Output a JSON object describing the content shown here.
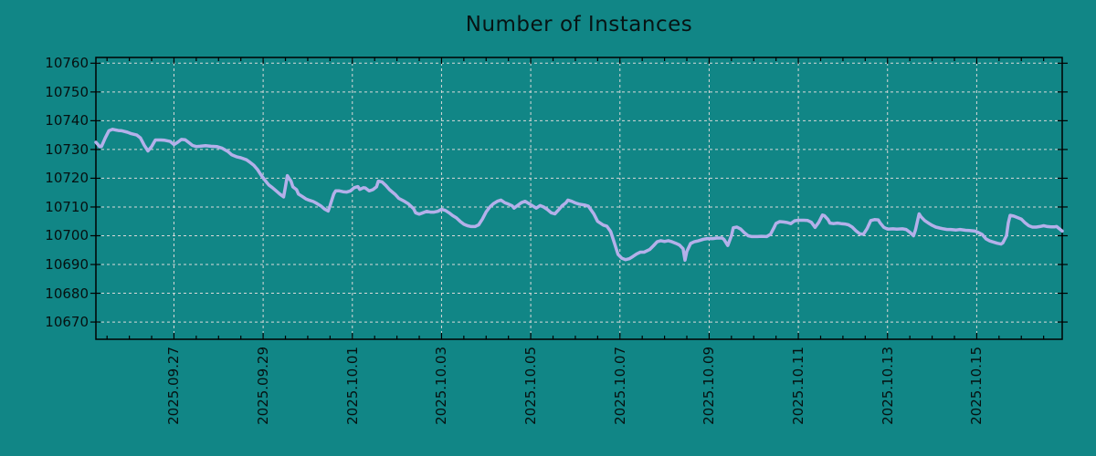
{
  "chart_data": {
    "type": "line",
    "title": "Number of Instances",
    "background_color": "#118686",
    "line_color": "#b4b0ea",
    "grid_color": "#d9d9d9",
    "axis_color": "#000000",
    "text_color": "#061010",
    "grid": true,
    "legend": "none",
    "ylim": [
      10664,
      10762
    ],
    "y_ticks": [
      10670,
      10680,
      10690,
      10700,
      10710,
      10720,
      10730,
      10740,
      10750,
      10760
    ],
    "xlim_hours": [
      0,
      520
    ],
    "x_ticks": [
      {
        "label": "2025.09.27",
        "t": 42
      },
      {
        "label": "2025.09.29",
        "t": 90
      },
      {
        "label": "2025.10.01",
        "t": 138
      },
      {
        "label": "2025.10.03",
        "t": 186
      },
      {
        "label": "2025.10.05",
        "t": 234
      },
      {
        "label": "2025.10.07",
        "t": 282
      },
      {
        "label": "2025.10.09",
        "t": 330
      },
      {
        "label": "2025.10.11",
        "t": 378
      },
      {
        "label": "2025.10.13",
        "t": 426
      },
      {
        "label": "2025.10.15",
        "t": 474
      }
    ],
    "x_minor_tick_start_hour": 6,
    "x_minor_tick_every_hours": 12,
    "series": [
      {
        "name": "Number of Instances",
        "points": [
          [
            0,
            10732.5
          ],
          [
            2,
            10731
          ],
          [
            3,
            10731
          ],
          [
            5,
            10734
          ],
          [
            7,
            10736.5
          ],
          [
            9,
            10737
          ],
          [
            12,
            10736.6
          ],
          [
            14,
            10736.5
          ],
          [
            17,
            10736
          ],
          [
            19,
            10735.5
          ],
          [
            22,
            10735
          ],
          [
            24,
            10734
          ],
          [
            26,
            10731.5
          ],
          [
            28,
            10729.5
          ],
          [
            30,
            10731
          ],
          [
            32,
            10733.3
          ],
          [
            35,
            10733.3
          ],
          [
            37,
            10733.2
          ],
          [
            40,
            10732.8
          ],
          [
            42,
            10731.7
          ],
          [
            44,
            10732.5
          ],
          [
            46,
            10733.5
          ],
          [
            48,
            10733.4
          ],
          [
            50,
            10732.4
          ],
          [
            52,
            10731.4
          ],
          [
            54,
            10731
          ],
          [
            56,
            10731.1
          ],
          [
            59,
            10731.3
          ],
          [
            62,
            10731.1
          ],
          [
            65,
            10731
          ],
          [
            68,
            10730.4
          ],
          [
            71,
            10729.3
          ],
          [
            73,
            10728.2
          ],
          [
            76,
            10727.4
          ],
          [
            78,
            10727.1
          ],
          [
            81,
            10726.4
          ],
          [
            83,
            10725.5
          ],
          [
            85,
            10724.5
          ],
          [
            87,
            10723
          ],
          [
            89,
            10721
          ],
          [
            91,
            10719.3
          ],
          [
            93,
            10717.7
          ],
          [
            95,
            10716.7
          ],
          [
            97,
            10715.6
          ],
          [
            99,
            10714.5
          ],
          [
            101,
            10713.5
          ],
          [
            102,
            10717
          ],
          [
            103,
            10720.9
          ],
          [
            105,
            10719
          ],
          [
            106,
            10717
          ],
          [
            108,
            10716
          ],
          [
            109,
            10714.5
          ],
          [
            111,
            10713.7
          ],
          [
            113,
            10712.8
          ],
          [
            115,
            10712.3
          ],
          [
            117,
            10711.9
          ],
          [
            119,
            10711.2
          ],
          [
            121,
            10710.4
          ],
          [
            123,
            10709.3
          ],
          [
            125,
            10708.6
          ],
          [
            126,
            10710.5
          ],
          [
            128,
            10714.5
          ],
          [
            129,
            10715.6
          ],
          [
            131,
            10715.6
          ],
          [
            133,
            10715.3
          ],
          [
            135,
            10715.2
          ],
          [
            137,
            10715.6
          ],
          [
            139,
            10716.7
          ],
          [
            141,
            10717.1
          ],
          [
            142,
            10716.1
          ],
          [
            144,
            10716.7
          ],
          [
            145,
            10716.6
          ],
          [
            147,
            10715.6
          ],
          [
            149,
            10716
          ],
          [
            151,
            10717
          ],
          [
            152,
            10719
          ],
          [
            154,
            10718.7
          ],
          [
            156,
            10717.5
          ],
          [
            158,
            10716
          ],
          [
            161,
            10714.4
          ],
          [
            163,
            10713
          ],
          [
            166,
            10712
          ],
          [
            168,
            10711.2
          ],
          [
            171,
            10709.4
          ],
          [
            172,
            10708
          ],
          [
            174,
            10707.5
          ],
          [
            176,
            10708
          ],
          [
            178,
            10708.5
          ],
          [
            180,
            10708.2
          ],
          [
            182,
            10708.2
          ],
          [
            184,
            10708.5
          ],
          [
            186,
            10709.2
          ],
          [
            188,
            10708.8
          ],
          [
            190,
            10708
          ],
          [
            192,
            10707
          ],
          [
            194,
            10706.2
          ],
          [
            196,
            10705
          ],
          [
            198,
            10704
          ],
          [
            200,
            10703.5
          ],
          [
            202,
            10703.2
          ],
          [
            204,
            10703.2
          ],
          [
            206,
            10703.8
          ],
          [
            208,
            10705.8
          ],
          [
            210,
            10708.3
          ],
          [
            212,
            10710
          ],
          [
            214,
            10711.2
          ],
          [
            216,
            10712
          ],
          [
            218,
            10712.4
          ],
          [
            220,
            10711.5
          ],
          [
            222,
            10711
          ],
          [
            224,
            10710.4
          ],
          [
            225,
            10709.6
          ],
          [
            227,
            10710.6
          ],
          [
            229,
            10711.5
          ],
          [
            231,
            10712
          ],
          [
            233,
            10711.2
          ],
          [
            235,
            10710.4
          ],
          [
            237,
            10709.6
          ],
          [
            239,
            10710.5
          ],
          [
            241,
            10710
          ],
          [
            243,
            10709.1
          ],
          [
            245,
            10708
          ],
          [
            247,
            10707.6
          ],
          [
            249,
            10709
          ],
          [
            251,
            10710.5
          ],
          [
            253,
            10711.5
          ],
          [
            254,
            10712.4
          ],
          [
            256,
            10712
          ],
          [
            258,
            10711.4
          ],
          [
            260,
            10711
          ],
          [
            263,
            10710.7
          ],
          [
            265,
            10710.3
          ],
          [
            268,
            10707.5
          ],
          [
            270,
            10705
          ],
          [
            273,
            10703.7
          ],
          [
            275,
            10703.3
          ],
          [
            277,
            10701.5
          ],
          [
            279,
            10697.5
          ],
          [
            281,
            10693.5
          ],
          [
            283,
            10692.2
          ],
          [
            285,
            10691.7
          ],
          [
            287,
            10692
          ],
          [
            289,
            10692.8
          ],
          [
            291,
            10693.7
          ],
          [
            293,
            10694.3
          ],
          [
            295,
            10694.3
          ],
          [
            298,
            10695.2
          ],
          [
            300,
            10696.5
          ],
          [
            302,
            10697.9
          ],
          [
            304,
            10698.3
          ],
          [
            306,
            10698
          ],
          [
            308,
            10698.3
          ],
          [
            310,
            10697.9
          ],
          [
            312,
            10697.4
          ],
          [
            314,
            10696.8
          ],
          [
            316,
            10695.5
          ],
          [
            317,
            10691.5
          ],
          [
            318,
            10694.5
          ],
          [
            320,
            10697.3
          ],
          [
            322,
            10697.9
          ],
          [
            324,
            10698.2
          ],
          [
            327,
            10698.8
          ],
          [
            329,
            10699
          ],
          [
            332,
            10699
          ],
          [
            334,
            10699.2
          ],
          [
            337,
            10699.2
          ],
          [
            338,
            10698.7
          ],
          [
            340,
            10696.6
          ],
          [
            342,
            10700
          ],
          [
            343,
            10702.8
          ],
          [
            345,
            10703
          ],
          [
            347,
            10702.3
          ],
          [
            349,
            10701
          ],
          [
            351,
            10700
          ],
          [
            353,
            10699.7
          ],
          [
            356,
            10699.7
          ],
          [
            358,
            10699.8
          ],
          [
            361,
            10699.7
          ],
          [
            363,
            10700.5
          ],
          [
            365,
            10702.9
          ],
          [
            366,
            10704.3
          ],
          [
            368,
            10704.9
          ],
          [
            370,
            10704.8
          ],
          [
            372,
            10704.6
          ],
          [
            374,
            10704.2
          ],
          [
            376,
            10705.2
          ],
          [
            378,
            10705.4
          ],
          [
            381,
            10705.4
          ],
          [
            383,
            10705.3
          ],
          [
            385,
            10704.7
          ],
          [
            387,
            10702.9
          ],
          [
            389,
            10704.7
          ],
          [
            391,
            10707.2
          ],
          [
            392,
            10707
          ],
          [
            394,
            10705.6
          ],
          [
            395,
            10704.4
          ],
          [
            397,
            10704.2
          ],
          [
            399,
            10704.4
          ],
          [
            401,
            10704.2
          ],
          [
            403,
            10704.1
          ],
          [
            405,
            10703.8
          ],
          [
            407,
            10703
          ],
          [
            409,
            10701.7
          ],
          [
            411,
            10700.7
          ],
          [
            413,
            10700.5
          ],
          [
            415,
            10702.5
          ],
          [
            417,
            10705.3
          ],
          [
            419,
            10705.6
          ],
          [
            421,
            10705.5
          ],
          [
            422,
            10704.5
          ],
          [
            424,
            10702.9
          ],
          [
            426,
            10702.3
          ],
          [
            429,
            10702.4
          ],
          [
            431,
            10702.3
          ],
          [
            434,
            10702.4
          ],
          [
            436,
            10702.2
          ],
          [
            438,
            10701.2
          ],
          [
            440,
            10700
          ],
          [
            441,
            10702
          ],
          [
            443,
            10707.6
          ],
          [
            444,
            10706.6
          ],
          [
            446,
            10705.3
          ],
          [
            448,
            10704.4
          ],
          [
            450,
            10703.6
          ],
          [
            452,
            10703
          ],
          [
            454,
            10702.7
          ],
          [
            456,
            10702.4
          ],
          [
            458,
            10702.2
          ],
          [
            460,
            10702.2
          ],
          [
            463,
            10702
          ],
          [
            465,
            10702.2
          ],
          [
            468,
            10701.9
          ],
          [
            470,
            10701.8
          ],
          [
            473,
            10701.6
          ],
          [
            475,
            10701.1
          ],
          [
            477,
            10700.4
          ],
          [
            479,
            10698.9
          ],
          [
            481,
            10698.2
          ],
          [
            483,
            10697.8
          ],
          [
            485,
            10697.4
          ],
          [
            487,
            10697.1
          ],
          [
            488,
            10697.5
          ],
          [
            490,
            10700
          ],
          [
            491,
            10704.5
          ],
          [
            492,
            10707.1
          ],
          [
            494,
            10706.8
          ],
          [
            496,
            10706.3
          ],
          [
            498,
            10705.8
          ],
          [
            500,
            10704.5
          ],
          [
            502,
            10703.5
          ],
          [
            504,
            10703
          ],
          [
            506,
            10703
          ],
          [
            508,
            10703.2
          ],
          [
            510,
            10703.5
          ],
          [
            512,
            10703.2
          ],
          [
            514,
            10703.1
          ],
          [
            516,
            10703.1
          ],
          [
            517,
            10703.2
          ],
          [
            520,
            10701.6
          ]
        ]
      }
    ]
  }
}
